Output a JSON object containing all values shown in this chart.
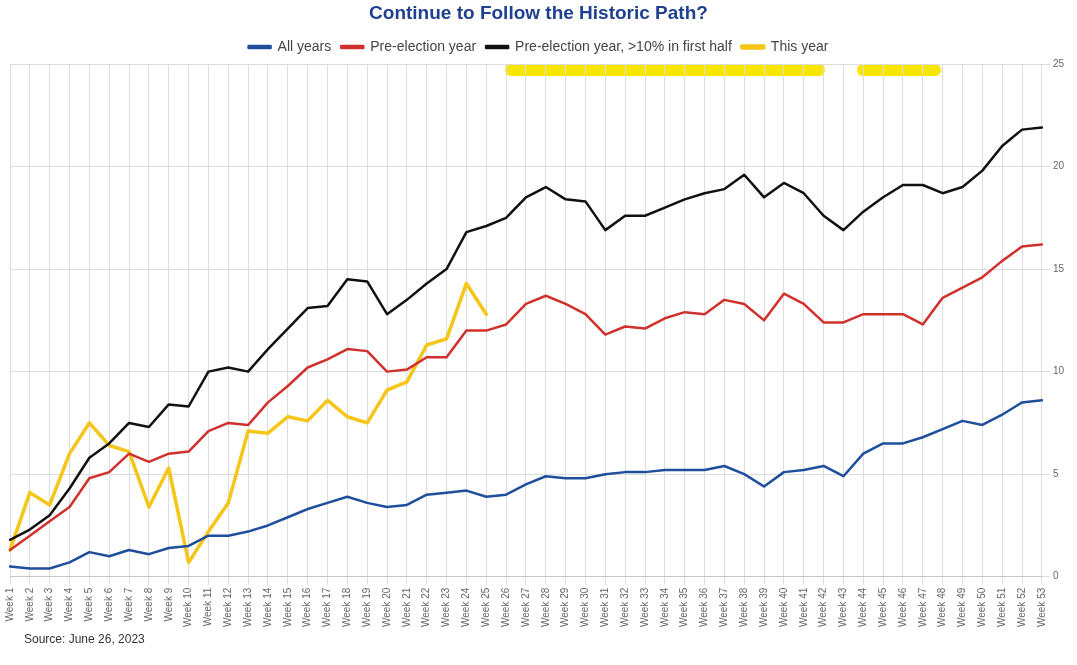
{
  "chart_data": {
    "type": "line",
    "title": "Continue to Follow the Historic Path?",
    "categories": [
      "Week 1",
      "Week 2",
      "Week 3",
      "Week 4",
      "Week 5",
      "Week 6",
      "Week 7",
      "Week 8",
      "Week 9",
      "Week 10",
      "Week 11",
      "Week 12",
      "Week 13",
      "Week 14",
      "Week 15",
      "Week 16",
      "Week 17",
      "Week 18",
      "Week 19",
      "Week 20",
      "Week 21",
      "Week 22",
      "Week 23",
      "Week 24",
      "Week 25",
      "Week 26",
      "Week 27",
      "Week 28",
      "Week 29",
      "Week 30",
      "Week 31",
      "Week 32",
      "Week 33",
      "Week 34",
      "Week 35",
      "Week 36",
      "Week 37",
      "Week 38",
      "Week 39",
      "Week 40",
      "Week 41",
      "Week 42",
      "Week 43",
      "Week 44",
      "Week 45",
      "Week 46",
      "Week 47",
      "Week 48",
      "Week 49",
      "Week 50",
      "Week 51",
      "Week 52",
      "Week 53"
    ],
    "series": [
      {
        "name": "All years",
        "color": "#1f4e9c",
        "values": [
          0.5,
          0.4,
          0.4,
          0.7,
          1.2,
          1.0,
          1.3,
          1.1,
          1.4,
          1.5,
          2.0,
          2.0,
          2.2,
          2.5,
          2.9,
          3.3,
          3.6,
          3.9,
          3.6,
          3.4,
          3.5,
          4.0,
          4.1,
          4.2,
          3.9,
          4.0,
          4.5,
          4.9,
          4.8,
          4.8,
          5.0,
          5.1,
          5.1,
          5.2,
          5.2,
          5.2,
          5.4,
          5.0,
          4.4,
          5.1,
          5.2,
          5.4,
          4.9,
          6.0,
          6.5,
          6.5,
          6.8,
          7.2,
          7.6,
          7.4,
          7.9,
          8.5,
          8.6
        ]
      },
      {
        "name": "Pre-election year",
        "color": "#d0312d",
        "values": [
          1.3,
          2.0,
          2.7,
          3.4,
          4.8,
          5.1,
          6.0,
          5.6,
          6.0,
          6.1,
          7.1,
          7.5,
          7.4,
          8.5,
          9.3,
          10.2,
          10.6,
          11.1,
          11.0,
          10.0,
          10.1,
          10.7,
          10.7,
          12.0,
          12.0,
          12.3,
          13.3,
          13.7,
          13.3,
          12.8,
          11.8,
          12.2,
          12.1,
          12.6,
          12.9,
          12.8,
          13.5,
          13.3,
          12.5,
          13.8,
          13.3,
          12.4,
          12.4,
          12.8,
          12.8,
          12.8,
          12.3,
          13.6,
          14.1,
          14.6,
          15.4,
          16.1,
          16.2
        ]
      },
      {
        "name": "Pre-election year, >10% in first half",
        "color": "#111111",
        "values": [
          1.8,
          2.3,
          3.0,
          4.3,
          5.8,
          6.5,
          7.5,
          7.3,
          8.4,
          8.3,
          10.0,
          10.2,
          10.0,
          11.1,
          12.1,
          13.1,
          13.2,
          14.5,
          14.4,
          12.8,
          13.5,
          14.3,
          15.0,
          16.8,
          17.1,
          17.5,
          18.5,
          19.0,
          18.4,
          18.3,
          16.9,
          17.6,
          17.6,
          18.0,
          18.4,
          18.7,
          18.9,
          19.6,
          18.5,
          19.2,
          18.7,
          17.6,
          16.9,
          17.8,
          18.5,
          19.1,
          19.1,
          18.7,
          19.0,
          19.8,
          21.0,
          21.8,
          21.9
        ]
      },
      {
        "name": "This year",
        "color": "#f5c518",
        "values": [
          1.3,
          4.1,
          3.5,
          6.0,
          7.5,
          6.4,
          6.1,
          3.4,
          5.3,
          0.7,
          2.2,
          3.6,
          7.1,
          7.0,
          7.8,
          7.6,
          8.6,
          7.8,
          7.5,
          9.1,
          9.5,
          11.3,
          11.6,
          14.3,
          12.8,
          null,
          null,
          null,
          null,
          null,
          null,
          null,
          null,
          null,
          null,
          null,
          null,
          null,
          null,
          null,
          null,
          null,
          null,
          null,
          null,
          null,
          null,
          null,
          null,
          null,
          null,
          null,
          null
        ]
      }
    ],
    "ylim": [
      0,
      25
    ],
    "yticks": [
      0,
      5,
      10,
      15,
      20,
      25
    ],
    "grid": true,
    "legend": "top",
    "marker": "none",
    "line_style": "solid",
    "annotations": [
      "Source: June 26, 2023"
    ]
  }
}
